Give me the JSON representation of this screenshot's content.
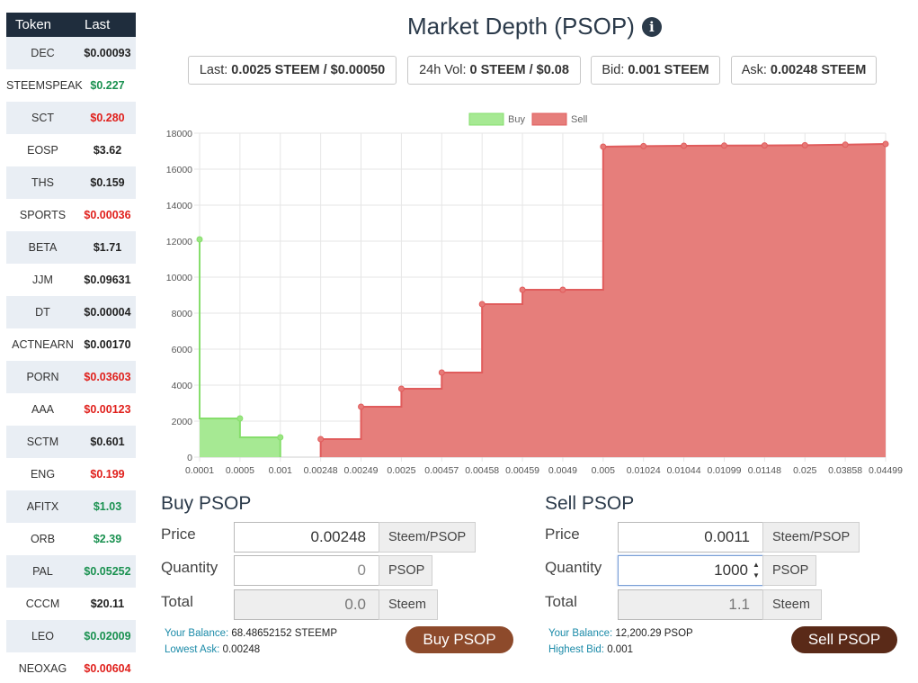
{
  "token_table": {
    "headers": {
      "token": "Token",
      "last": "Last"
    },
    "rows": [
      {
        "symbol": "DEC",
        "last": "$0.00093",
        "color": "#222222"
      },
      {
        "symbol": "STEEMSPEAK",
        "last": "$0.227",
        "color": "#1a9150"
      },
      {
        "symbol": "SCT",
        "last": "$0.280",
        "color": "#e0201c"
      },
      {
        "symbol": "EOSP",
        "last": "$3.62",
        "color": "#222222"
      },
      {
        "symbol": "THS",
        "last": "$0.159",
        "color": "#222222"
      },
      {
        "symbol": "SPORTS",
        "last": "$0.00036",
        "color": "#e0201c"
      },
      {
        "symbol": "BETA",
        "last": "$1.71",
        "color": "#222222"
      },
      {
        "symbol": "JJM",
        "last": "$0.09631",
        "color": "#222222"
      },
      {
        "symbol": "DT",
        "last": "$0.00004",
        "color": "#222222"
      },
      {
        "symbol": "ACTNEARN",
        "last": "$0.00170",
        "color": "#222222"
      },
      {
        "symbol": "PORN",
        "last": "$0.03603",
        "color": "#e0201c"
      },
      {
        "symbol": "AAA",
        "last": "$0.00123",
        "color": "#e0201c"
      },
      {
        "symbol": "SCTM",
        "last": "$0.601",
        "color": "#222222"
      },
      {
        "symbol": "ENG",
        "last": "$0.199",
        "color": "#e0201c"
      },
      {
        "symbol": "AFITX",
        "last": "$1.03",
        "color": "#1a9150"
      },
      {
        "symbol": "ORB",
        "last": "$2.39",
        "color": "#1a9150"
      },
      {
        "symbol": "PAL",
        "last": "$0.05252",
        "color": "#1a9150"
      },
      {
        "symbol": "CCCM",
        "last": "$20.11",
        "color": "#222222"
      },
      {
        "symbol": "LEO",
        "last": "$0.02009",
        "color": "#1a9150"
      },
      {
        "symbol": "NEOXAG",
        "last": "$0.00604",
        "color": "#e0201c"
      }
    ]
  },
  "header": {
    "title": "Market Depth (PSOP)",
    "info_icon": "info-circle-icon"
  },
  "stats": {
    "last": {
      "label": "Last:",
      "value": "0.0025 STEEM / $0.00050"
    },
    "vol": {
      "label": "24h Vol:",
      "value": "0 STEEM / $0.08"
    },
    "bid": {
      "label": "Bid:",
      "value": "0.001 STEEM"
    },
    "ask": {
      "label": "Ask:",
      "value": "0.00248 STEEM"
    }
  },
  "chart_data": {
    "type": "area",
    "title": "",
    "legend": [
      "Buy",
      "Sell"
    ],
    "legend_position": "top-center",
    "categories": [
      "0.0001",
      "0.0005",
      "0.001",
      "0.00248",
      "0.00249",
      "0.0025",
      "0.00457",
      "0.00458",
      "0.00459",
      "0.0049",
      "0.005",
      "0.01024",
      "0.01044",
      "0.01099",
      "0.01148",
      "0.025",
      "0.03858",
      "0.04499"
    ],
    "series": [
      {
        "name": "Buy",
        "color": "#a6e993",
        "stroke": "#86de6c",
        "points": [
          [
            0,
            12100
          ],
          [
            0,
            2150
          ],
          [
            1,
            2150
          ],
          [
            1,
            1100
          ],
          [
            2,
            1100
          ],
          [
            2,
            0
          ]
        ]
      },
      {
        "name": "Sell",
        "color": "#e67e7b",
        "stroke": "#e05c5c",
        "points": [
          [
            3,
            0
          ],
          [
            3,
            1000
          ],
          [
            4,
            1000
          ],
          [
            4,
            2800
          ],
          [
            5,
            2800
          ],
          [
            5,
            3800
          ],
          [
            6,
            3800
          ],
          [
            6,
            4700
          ],
          [
            7,
            4700
          ],
          [
            7,
            8500
          ],
          [
            8,
            8500
          ],
          [
            8,
            9300
          ],
          [
            9,
            9300
          ],
          [
            10,
            9300
          ],
          [
            10,
            17250
          ],
          [
            11,
            17280
          ],
          [
            12,
            17300
          ],
          [
            13,
            17310
          ],
          [
            14,
            17320
          ],
          [
            15,
            17330
          ],
          [
            16,
            17360
          ],
          [
            17,
            17400
          ]
        ]
      }
    ],
    "markers": {
      "buy": [
        [
          0,
          12100
        ],
        [
          1,
          2150
        ],
        [
          2,
          1100
        ]
      ],
      "sell": [
        [
          3,
          1000
        ],
        [
          4,
          2800
        ],
        [
          5,
          3800
        ],
        [
          6,
          4700
        ],
        [
          7,
          8500
        ],
        [
          8,
          9300
        ],
        [
          9,
          9300
        ],
        [
          10,
          17250
        ],
        [
          11,
          17280
        ],
        [
          12,
          17300
        ],
        [
          13,
          17310
        ],
        [
          14,
          17320
        ],
        [
          15,
          17330
        ],
        [
          16,
          17360
        ],
        [
          17,
          17400
        ]
      ]
    },
    "yticks": [
      0,
      2000,
      4000,
      6000,
      8000,
      10000,
      12000,
      14000,
      16000,
      18000
    ],
    "ylim": [
      0,
      18000
    ],
    "xlabel": "",
    "ylabel": "",
    "grid": true
  },
  "buy_form": {
    "title": "Buy PSOP",
    "price_label": "Price",
    "price_value": "0.00248",
    "price_unit": "Steem/PSOP",
    "qty_label": "Quantity",
    "qty_placeholder": "0",
    "qty_unit": "PSOP",
    "total_label": "Total",
    "total_value": "0.0",
    "total_unit": "Steem",
    "balance_key": "Your Balance:",
    "balance_value": "68.48652152 STEEMP",
    "extra_key": "Lowest Ask:",
    "extra_value": "0.00248",
    "button": "Buy PSOP",
    "button_color": "#8d4a2b"
  },
  "sell_form": {
    "title": "Sell PSOP",
    "price_label": "Price",
    "price_value": "0.0011",
    "price_unit": "Steem/PSOP",
    "qty_label": "Quantity",
    "qty_value": "1000",
    "qty_unit": "PSOP",
    "total_label": "Total",
    "total_value": "1.1",
    "total_unit": "Steem",
    "balance_key": "Your Balance:",
    "balance_value": "12,200.29 PSOP",
    "extra_key": "Highest Bid:",
    "extra_value": "0.001",
    "button": "Sell PSOP",
    "button_color": "#5a2a18"
  }
}
